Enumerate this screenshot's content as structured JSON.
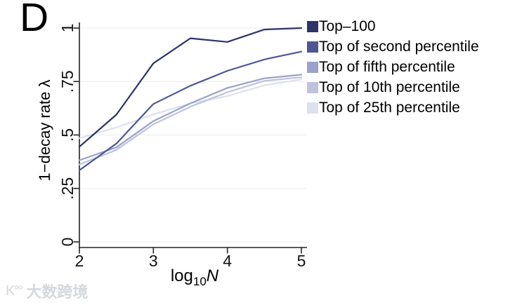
{
  "figure": {
    "panel_label": "D",
    "watermark": {
      "icon": "K°°",
      "text": "大数跨境"
    }
  },
  "chart_data": {
    "type": "line",
    "title": "",
    "xlabel": {
      "prefix": "log",
      "sub": "10",
      "var": "N"
    },
    "ylabel": "1−decay rate λ",
    "xlim": [
      2,
      5
    ],
    "ylim": [
      0,
      1
    ],
    "grid": "horizontal",
    "legend_position": "right",
    "x": [
      2,
      2.5,
      3,
      3.5,
      4,
      4.5,
      5
    ],
    "x_ticks": [
      {
        "label": "2",
        "v": 2
      },
      {
        "label": "3",
        "v": 3
      },
      {
        "label": "4",
        "v": 4
      },
      {
        "label": "5",
        "v": 5
      }
    ],
    "y_ticks": [
      {
        "label": "0",
        "v": 0
      },
      {
        "label": ".25",
        "v": 0.25
      },
      {
        "label": ".5",
        "v": 0.5
      },
      {
        "label": ".75",
        "v": 0.75
      },
      {
        "label": "1",
        "v": 1
      }
    ],
    "series": [
      {
        "name": "Top–100",
        "color": "#2c3468",
        "values": [
          0.445,
          0.595,
          0.835,
          0.952,
          0.935,
          0.993,
          1.0
        ]
      },
      {
        "name": "Top of second percentile",
        "color": "#4d5794",
        "values": [
          0.335,
          0.46,
          0.645,
          0.73,
          0.8,
          0.853,
          0.89
        ]
      },
      {
        "name": "Top of fifth percentile",
        "color": "#99a2c9",
        "values": [
          0.382,
          0.442,
          0.565,
          0.648,
          0.72,
          0.765,
          0.782
        ]
      },
      {
        "name": "Top of 10th percentile",
        "color": "#bdc3dc",
        "values": [
          0.362,
          0.43,
          0.55,
          0.632,
          0.7,
          0.753,
          0.77
        ]
      },
      {
        "name": "Top of 25th percentile",
        "color": "#dde0ee",
        "values": [
          0.485,
          0.535,
          0.596,
          0.648,
          0.682,
          0.732,
          0.76
        ]
      }
    ],
    "style": {
      "axis_color": "#222222",
      "grid_color": "#edeff3",
      "line_width": 2.2
    }
  }
}
